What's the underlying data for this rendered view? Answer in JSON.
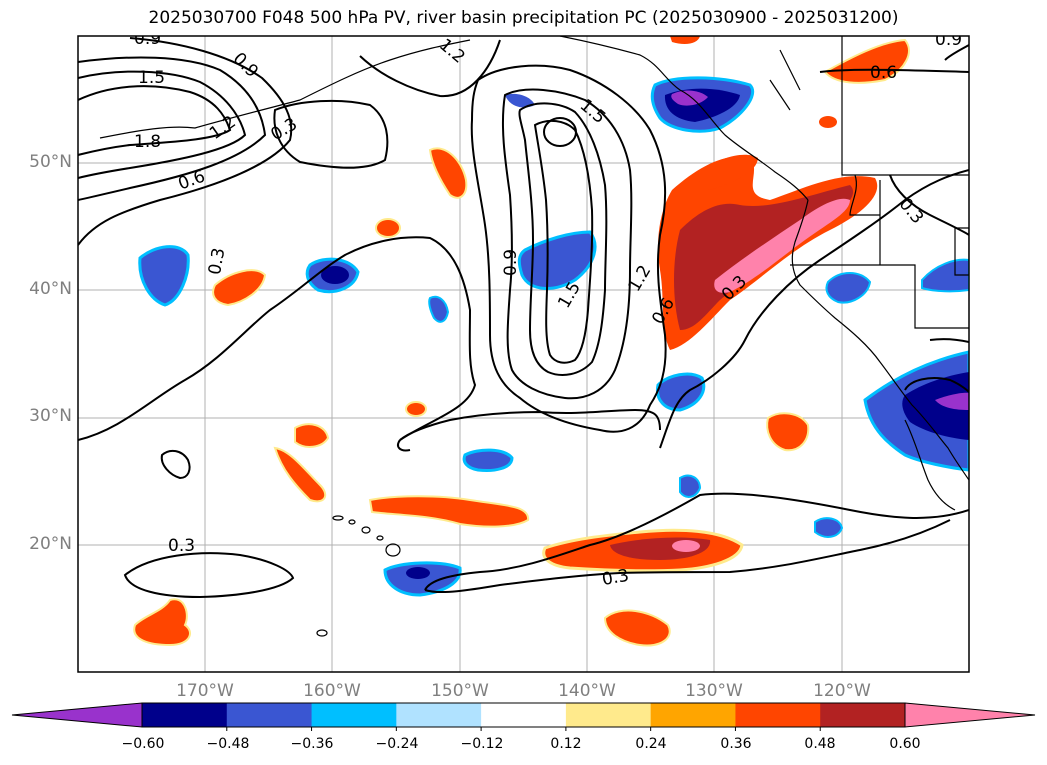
{
  "title": "2025030700 F048 500 hPa PV, river basin precipitation PC (2025030900 - 2025031200)",
  "map": {
    "lat_labels": [
      "50°N",
      "40°N",
      "30°N",
      "20°N"
    ],
    "lon_labels": [
      "170°W",
      "160°W",
      "150°W",
      "140°W",
      "130°W",
      "120°W"
    ],
    "contour_labels": [
      "0.9",
      "0.9",
      "1.5",
      "1.8",
      "1.2",
      "0.6",
      "0.3",
      "0.3",
      "1.2",
      "0.9",
      "1.5",
      "1.5",
      "1.2",
      "0.6",
      "0.3",
      "0.6",
      "0.3",
      "0.3",
      "0.3",
      "0.9"
    ]
  },
  "colorbar": {
    "ticks": [
      "−0.60",
      "−0.48",
      "−0.36",
      "−0.24",
      "−0.12",
      "0.12",
      "0.24",
      "0.36",
      "0.48",
      "0.60"
    ],
    "colors": [
      "#9932cc",
      "#00008b",
      "#3a56d2",
      "#00bfff",
      "#b0e2ff",
      "#ffffff",
      "#ffea8c",
      "#ffa500",
      "#ff4500",
      "#b22222",
      "#ff82ab"
    ]
  }
}
